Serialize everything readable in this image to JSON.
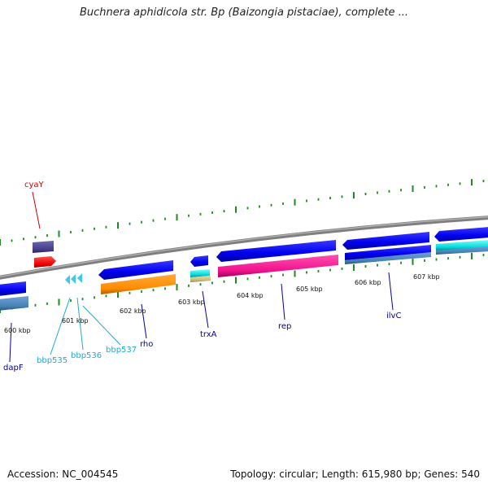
{
  "title": "Buchnera aphidicola str. Bp (Baizongia pistaciae), complete ...",
  "footer": {
    "accession": "Accession: NC_004545",
    "topology": "Topology: circular; Length: 615,980 bp; Genes: 540"
  },
  "colors": {
    "backbone": "#8c8c8c",
    "tick": "#1f8a1f",
    "label_red": "#cc0000",
    "label_navy": "#000099",
    "label_cyan": "#22aacc"
  },
  "ticks": [
    "600 kbp",
    "601 kbp",
    "602 kbp",
    "603 kbp",
    "604 kbp",
    "605 kbp",
    "606 kbp",
    "607 kbp"
  ],
  "genes": [
    {
      "id": "cyaY",
      "label": "cyaY",
      "color": "label_red"
    },
    {
      "id": "dapF",
      "label": "dapF",
      "color": "label_navy"
    },
    {
      "id": "bbp535",
      "label": "bbp535",
      "color": "label_cyan"
    },
    {
      "id": "bbp536",
      "label": "bbp536",
      "color": "label_cyan"
    },
    {
      "id": "bbp537",
      "label": "bbp537",
      "color": "label_cyan"
    },
    {
      "id": "rho",
      "label": "rho",
      "color": "label_navy"
    },
    {
      "id": "trxA",
      "label": "trxA",
      "color": "label_navy"
    },
    {
      "id": "rep",
      "label": "rep",
      "color": "label_navy"
    },
    {
      "id": "ilvC",
      "label": "ilvC",
      "color": "label_navy"
    }
  ]
}
